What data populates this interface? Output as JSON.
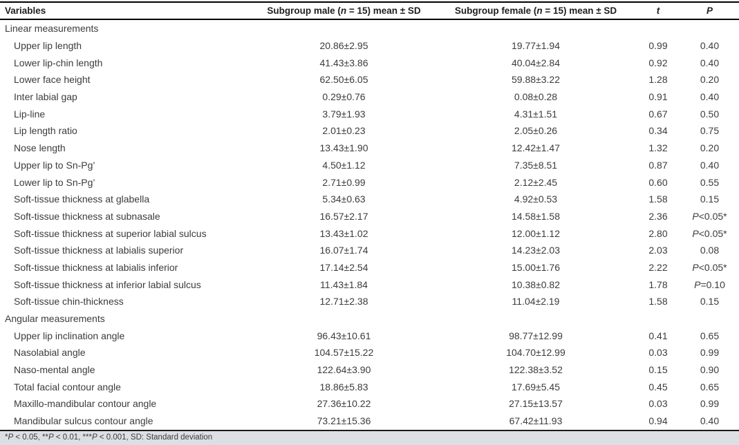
{
  "table": {
    "columns": [
      "Variables",
      "Subgroup male (n = 15) mean ± SD",
      "Subgroup female (n = 15) mean ± SD",
      "t",
      "P"
    ],
    "sections": [
      {
        "label": "Linear measurements",
        "rows": [
          {
            "variable": "Upper lip length",
            "male": "20.86±2.95",
            "female": "19.77±1.94",
            "t": "0.99",
            "p": "0.40"
          },
          {
            "variable": "Lower lip-chin length",
            "male": "41.43±3.86",
            "female": "40.04±2.84",
            "t": "0.92",
            "p": "0.40"
          },
          {
            "variable": "Lower face height",
            "male": "62.50±6.05",
            "female": "59.88±3.22",
            "t": "1.28",
            "p": "0.20"
          },
          {
            "variable": "Inter labial gap",
            "male": "0.29±0.76",
            "female": "0.08±0.28",
            "t": "0.91",
            "p": "0.40"
          },
          {
            "variable": "Lip-line",
            "male": "3.79±1.93",
            "female": "4.31±1.51",
            "t": "0.67",
            "p": "0.50"
          },
          {
            "variable": "Lip length ratio",
            "male": "2.01±0.23",
            "female": "2.05±0.26",
            "t": "0.34",
            "p": "0.75"
          },
          {
            "variable": "Nose length",
            "male": "13.43±1.90",
            "female": "12.42±1.47",
            "t": "1.32",
            "p": "0.20"
          },
          {
            "variable": "Upper lip to Sn-Pg’",
            "male": "4.50±1.12",
            "female": "7.35±8.51",
            "t": "0.87",
            "p": "0.40"
          },
          {
            "variable": "Lower lip to Sn-Pg’",
            "male": "2.71±0.99",
            "female": "2.12±2.45",
            "t": "0.60",
            "p": "0.55"
          },
          {
            "variable": "Soft-tissue thickness at glabella",
            "male": "5.34±0.63",
            "female": "4.92±0.53",
            "t": "1.58",
            "p": "0.15"
          },
          {
            "variable": "Soft-tissue thickness at subnasale",
            "male": "16.57±2.17",
            "female": "14.58±1.58",
            "t": "2.36",
            "p": "P<0.05*"
          },
          {
            "variable": "Soft-tissue thickness at superior labial sulcus",
            "male": "13.43±1.02",
            "female": "12.00±1.12",
            "t": "2.80",
            "p": "P<0.05*"
          },
          {
            "variable": "Soft-tissue thickness at labialis superior",
            "male": "16.07±1.74",
            "female": "14.23±2.03",
            "t": "2.03",
            "p": "0.08"
          },
          {
            "variable": "Soft-tissue thickness at labialis inferior",
            "male": "17.14±2.54",
            "female": "15.00±1.76",
            "t": "2.22",
            "p": "P<0.05*"
          },
          {
            "variable": "Soft-tissue thickness at inferior labial sulcus",
            "male": "11.43±1.84",
            "female": "10.38±0.82",
            "t": "1.78",
            "p": "P=0.10"
          },
          {
            "variable": "Soft-tissue chin-thickness",
            "male": "12.71±2.38",
            "female": "11.04±2.19",
            "t": "1.58",
            "p": "0.15"
          }
        ]
      },
      {
        "label": "Angular measurements",
        "rows": [
          {
            "variable": "Upper lip inclination angle",
            "male": "96.43±10.61",
            "female": "98.77±12.99",
            "t": "0.41",
            "p": "0.65"
          },
          {
            "variable": "Nasolabial angle",
            "male": "104.57±15.22",
            "female": "104.70±12.99",
            "t": "0.03",
            "p": "0.99"
          },
          {
            "variable": "Naso-mental angle",
            "male": "122.64±3.90",
            "female": "122.38±3.52",
            "t": "0.15",
            "p": "0.90"
          },
          {
            "variable": "Total facial contour angle",
            "male": "18.86±5.83",
            "female": "17.69±5.45",
            "t": "0.45",
            "p": "0.65"
          },
          {
            "variable": "Maxillo-mandibular contour angle",
            "male": "27.36±10.22",
            "female": "27.15±13.57",
            "t": "0.03",
            "p": "0.99"
          },
          {
            "variable": "Mandibular sulcus contour angle",
            "male": "73.21±15.36",
            "female": "67.42±11.93",
            "t": "0.94",
            "p": "0.40"
          }
        ]
      }
    ],
    "footnote": "*P < 0.05, **P < 0.01, ***P < 0.001, SD: Standard deviation"
  },
  "colors": {
    "border": "#000000",
    "body_text": "#3b3b3b",
    "header_text": "#1f1f1f",
    "footnote_bg": "#dce0e4"
  }
}
